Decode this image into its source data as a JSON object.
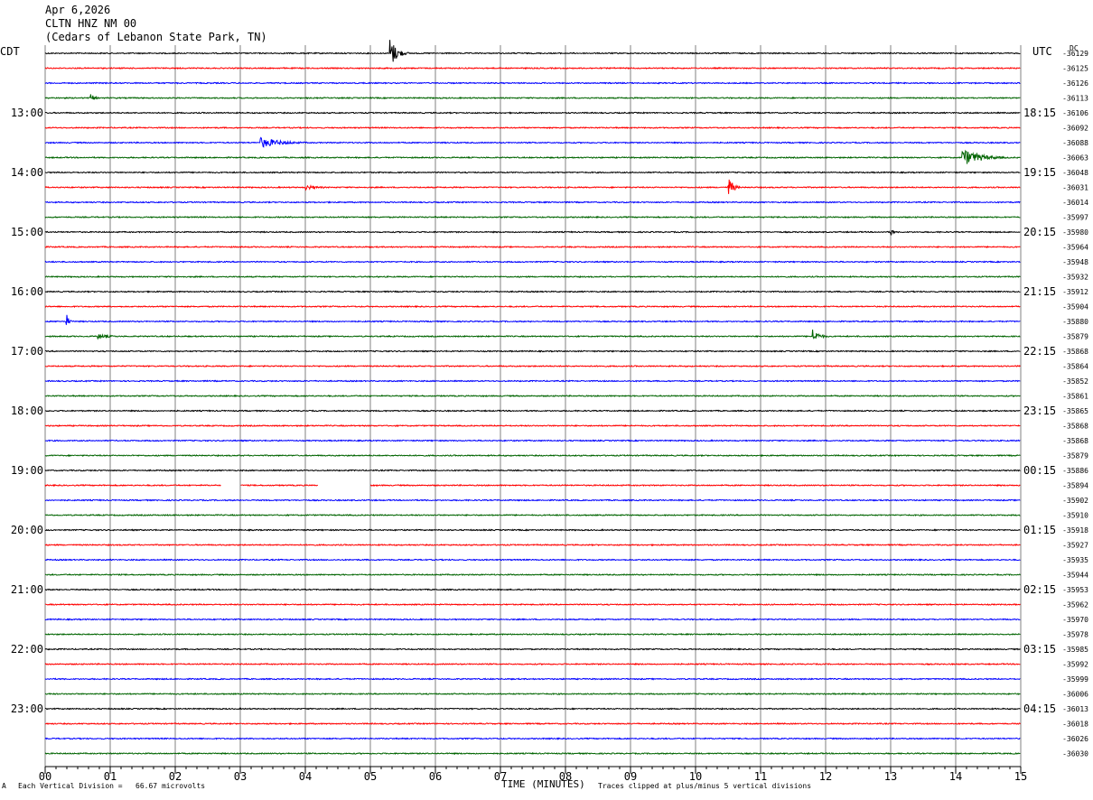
{
  "header": {
    "date": "Apr 6,2026",
    "station": "CLTN HNZ NM 00",
    "location": "(Cedars of Lebanon State Park, TN)"
  },
  "left_tz": "CDT",
  "right_tz": "UTC",
  "dc_label": "DC",
  "footer": {
    "mark": "A",
    "division": "Each Vertical Division =   66.67 microvolts",
    "clip": "Traces clipped at plus/minus 5 vertical divisions"
  },
  "colors": {
    "black": "#000000",
    "red": "#ff0000",
    "blue": "#0000ff",
    "green": "#006400",
    "grid": "#808080"
  },
  "chart_data": {
    "type": "line",
    "xlabel": "TIME (MINUTES)",
    "x_ticks": [
      "00",
      "01",
      "02",
      "03",
      "04",
      "05",
      "06",
      "07",
      "08",
      "09",
      "10",
      "11",
      "12",
      "13",
      "14",
      "15"
    ],
    "xlim": [
      0,
      15
    ],
    "trace_colors": [
      "black",
      "red",
      "blue",
      "green"
    ],
    "traces_per_hour": 4,
    "left_hour_labels": [
      "13:00",
      "14:00",
      "15:00",
      "16:00",
      "17:00",
      "18:00",
      "19:00",
      "20:00",
      "21:00",
      "22:00",
      "23:00"
    ],
    "right_hour_labels": [
      "18:15",
      "19:15",
      "20:15",
      "21:15",
      "22:15",
      "23:15",
      "00:15",
      "01:15",
      "02:15",
      "03:15",
      "04:15"
    ],
    "dc_values": [
      "-36129",
      "-36125",
      "-36126",
      "-36113",
      "-36106",
      "-36092",
      "-36088",
      "-36063",
      "-36048",
      "-36031",
      "-36014",
      "-35997",
      "-35980",
      "-35964",
      "-35948",
      "-35932",
      "-35912",
      "-35904",
      "-35880",
      "-35879",
      "-35868",
      "-35864",
      "-35852",
      "-35861",
      "-35865",
      "-35868",
      "-35868",
      "-35879",
      "-35886",
      "-35894",
      "-35902",
      "-35910",
      "-35918",
      "-35927",
      "-35935",
      "-35944",
      "-35953",
      "-35962",
      "-35970",
      "-35978",
      "-35985",
      "-35992",
      "-35999",
      "-36006",
      "-36013",
      "-36018",
      "-36026",
      "-36030"
    ],
    "events": [
      {
        "trace": 0,
        "minute": 5.3,
        "amplitude": 18,
        "duration": 0.3
      },
      {
        "trace": 3,
        "minute": 0.68,
        "amplitude": 6,
        "duration": 0.2
      },
      {
        "trace": 6,
        "minute": 3.3,
        "amplitude": 6,
        "duration": 1.0
      },
      {
        "trace": 7,
        "minute": 14.1,
        "amplitude": 10,
        "duration": 0.8
      },
      {
        "trace": 9,
        "minute": 4.0,
        "amplitude": 3,
        "duration": 0.6
      },
      {
        "trace": 9,
        "minute": 10.5,
        "amplitude": 14,
        "duration": 0.2
      },
      {
        "trace": 12,
        "minute": 13.0,
        "amplitude": 6,
        "duration": 0.1
      },
      {
        "trace": 18,
        "minute": 0.32,
        "amplitude": 12,
        "duration": 0.1
      },
      {
        "trace": 19,
        "minute": 0.8,
        "amplitude": 3,
        "duration": 0.6
      },
      {
        "trace": 19,
        "minute": 11.8,
        "amplitude": 8,
        "duration": 0.3
      }
    ],
    "gaps": [
      {
        "trace": 29,
        "start": 2.7,
        "end": 3.0
      },
      {
        "trace": 29,
        "start": 4.2,
        "end": 5.0
      }
    ]
  }
}
